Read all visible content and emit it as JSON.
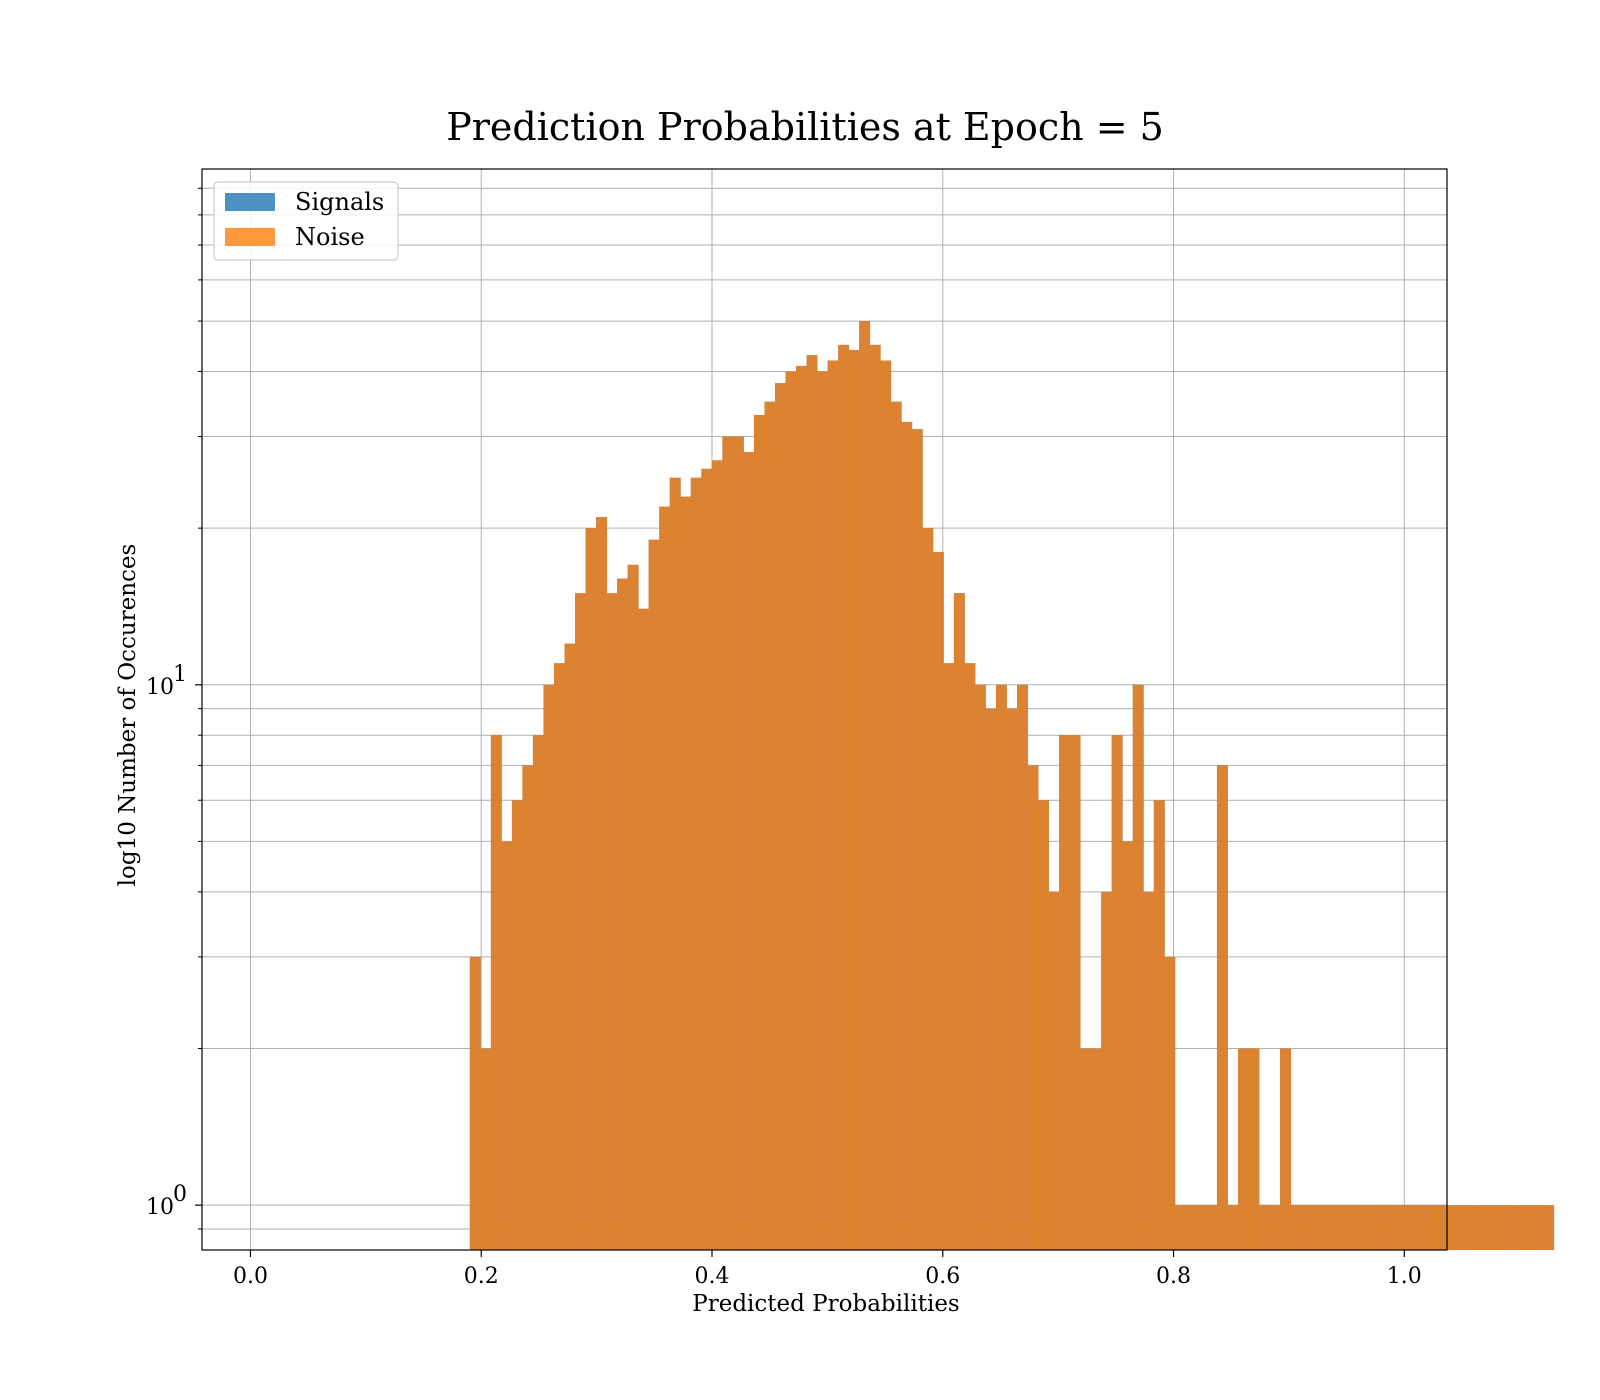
{
  "chart_data": {
    "type": "bar",
    "title": "Prediction Probabilities at Epoch = 5",
    "xlabel": "Predicted Probabilities",
    "ylabel": "log10 Number of Occurences",
    "xlim": [
      -0.042,
      1.037
    ],
    "ylim": [
      0.82,
      98
    ],
    "yscale": "log",
    "grid": true,
    "legend": "top-left",
    "bin_start": 0.0077,
    "bin_width": 0.00912,
    "xticks": [
      {
        "value": 0.0,
        "label": "0.0"
      },
      {
        "value": 0.2,
        "label": "0.2"
      },
      {
        "value": 0.4,
        "label": "0.4"
      },
      {
        "value": 0.6,
        "label": "0.6"
      },
      {
        "value": 0.8,
        "label": "0.8"
      },
      {
        "value": 1.0,
        "label": "1.0"
      }
    ],
    "yticks_major": [
      {
        "value": 1,
        "base": "10",
        "exp": "0"
      },
      {
        "value": 10,
        "base": "10",
        "exp": "1"
      }
    ],
    "yticks_minor": [
      0.9,
      2,
      3,
      4,
      5,
      6,
      7,
      8,
      9,
      20,
      30,
      40,
      50,
      60,
      70,
      80,
      90
    ],
    "series": [
      {
        "name": "Signals",
        "color": "#1f77b4",
        "opacity": 0.8,
        "values": [
          0,
          0,
          0,
          0,
          0,
          0,
          0,
          0,
          0,
          0,
          0,
          0,
          0,
          0,
          0,
          0,
          0,
          0,
          0,
          0,
          3,
          2,
          8,
          5,
          6,
          7,
          8,
          10,
          11,
          12,
          15,
          20,
          21,
          15,
          16,
          17,
          14,
          19,
          22,
          25,
          23,
          25,
          26,
          27,
          30,
          30,
          28,
          33,
          35,
          38,
          40,
          41,
          43,
          40,
          42,
          45,
          44,
          50,
          45,
          42,
          35,
          32,
          31,
          20,
          18,
          11,
          15,
          11,
          10,
          9,
          10,
          9,
          10,
          7,
          6,
          4,
          8,
          8,
          2,
          2,
          4,
          8,
          5,
          10,
          4,
          6,
          3,
          1,
          1,
          1,
          1,
          7,
          1,
          2,
          2,
          1,
          1,
          2,
          1,
          1,
          1,
          1,
          1,
          1,
          1,
          1,
          1,
          1,
          1,
          1,
          1,
          1,
          1,
          1,
          1,
          1,
          1,
          1,
          1,
          1,
          1,
          1,
          1
        ]
      },
      {
        "name": "Noise",
        "color": "#ff7f0e",
        "opacity": 0.8,
        "values": [
          0,
          0,
          0,
          0,
          0,
          0,
          0,
          0,
          0,
          0,
          0,
          0,
          0,
          0,
          0,
          0,
          0,
          0,
          0,
          0,
          3,
          2,
          8,
          5,
          6,
          7,
          8,
          10,
          11,
          12,
          15,
          20,
          21,
          15,
          16,
          17,
          14,
          19,
          22,
          25,
          23,
          25,
          26,
          27,
          30,
          30,
          28,
          33,
          35,
          38,
          40,
          41,
          43,
          40,
          42,
          45,
          44,
          50,
          45,
          42,
          35,
          32,
          31,
          20,
          18,
          11,
          15,
          11,
          10,
          9,
          10,
          9,
          10,
          7,
          6,
          4,
          8,
          8,
          2,
          2,
          4,
          8,
          5,
          10,
          4,
          6,
          3,
          1,
          1,
          1,
          1,
          7,
          1,
          2,
          2,
          1,
          1,
          2,
          1,
          1,
          1,
          1,
          1,
          1,
          1,
          1,
          1,
          1,
          1,
          1,
          1,
          1,
          1,
          1,
          1,
          1,
          1,
          1,
          1,
          1,
          1,
          1,
          1
        ]
      }
    ]
  }
}
